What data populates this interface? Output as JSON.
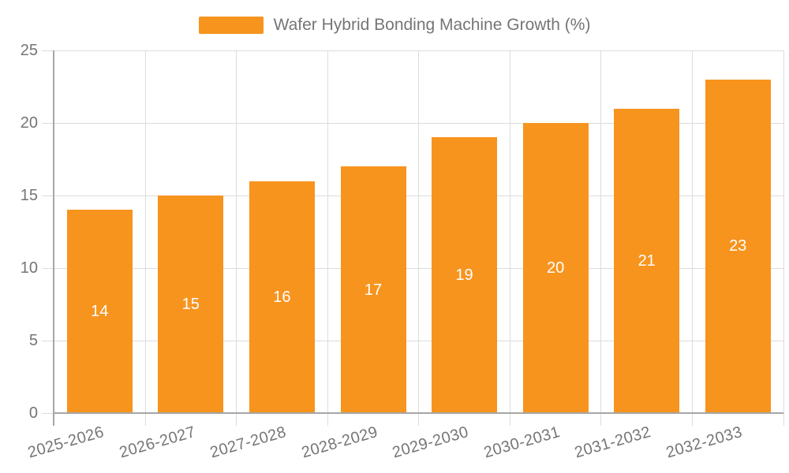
{
  "legend": {
    "label": "Wafer Hybrid Bonding Machine Growth (%)"
  },
  "colors": {
    "bar": "#f7941e",
    "axis_text": "#757575",
    "grid_line": "#dcdcdc",
    "axis_line": "#a6a6a6",
    "bar_label_text": "#ffffff",
    "background": "#ffffff"
  },
  "chart_data": {
    "type": "bar",
    "title": "",
    "series": [
      {
        "name": "Wafer Hybrid Bonding Machine Growth (%)",
        "values": [
          14,
          15,
          16,
          17,
          19,
          20,
          21,
          23
        ]
      }
    ],
    "categories": [
      "2025-2026",
      "2026-2027",
      "2027-2028",
      "2028-2029",
      "2029-2030",
      "2030-2031",
      "2031-2032",
      "2032-2033"
    ],
    "values": [
      14,
      15,
      16,
      17,
      19,
      20,
      21,
      23
    ],
    "xlabel": "",
    "ylabel": "",
    "ylim": [
      0,
      25
    ],
    "yticks": [
      0,
      5,
      10,
      15,
      20,
      25
    ],
    "grid": true,
    "legend_position": "top-center",
    "bar_value_labels": "inside-center",
    "x_tick_rotation_deg": -16
  }
}
